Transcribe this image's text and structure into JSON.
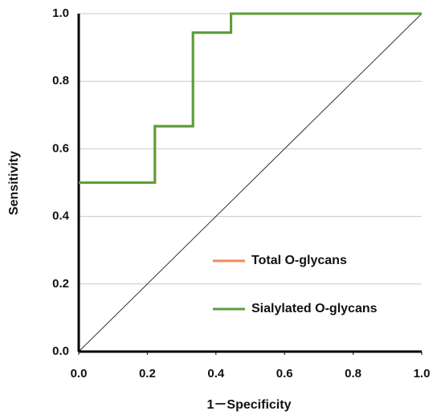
{
  "chart_data": {
    "type": "line",
    "xlabel": "1－Specificity",
    "ylabel": "Sensitivity",
    "x": [
      0,
      0.222,
      0.222,
      0.333,
      0.333,
      0.444,
      0.444,
      1
    ],
    "series": [
      {
        "name": "Total O-glycans",
        "color": "#f08a5a",
        "values": [
          0.5,
          0.5,
          0.667,
          0.667,
          0.944,
          0.944,
          1,
          1
        ]
      },
      {
        "name": "Sialylated O-glycans",
        "color": "#5a9e3a",
        "values": [
          0.5,
          0.5,
          0.667,
          0.667,
          0.944,
          0.944,
          1,
          1
        ]
      }
    ],
    "xlim": [
      0,
      1
    ],
    "ylim": [
      0,
      1
    ],
    "xticks": [
      {
        "value": 0,
        "label": "0.0"
      },
      0.2,
      0.4,
      0.6,
      0.8,
      {
        "value": 1,
        "label": "1.0"
      }
    ],
    "yticks": [
      {
        "value": 0,
        "label": "0.0"
      },
      0.2,
      0.4,
      0.6,
      0.8,
      {
        "value": 1,
        "label": "1.0"
      }
    ],
    "grid": true
  }
}
